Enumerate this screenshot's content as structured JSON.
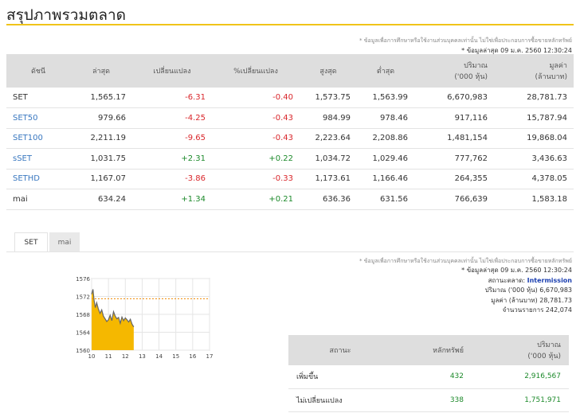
{
  "page_title": "สรุปภาพรวมตลาด",
  "summary": {
    "disclaimer": "* ข้อมูลเพื่อการศึกษาหรือใช้งานส่วนบุคคลเท่านั้น ไม่ใช่เพื่อประกอบการซื้อขายหลักทรัพย์",
    "updated": "* ข้อมูลล่าสุด 09 ม.ค. 2560 12:30:24",
    "headers": {
      "index": "ดัชนี",
      "last": "ล่าสุด",
      "change": "เปลี่ยนแปลง",
      "pct_change": "%เปลี่ยนแปลง",
      "high": "สูงสุด",
      "low": "ต่ำสุด",
      "volume_line1": "ปริมาณ",
      "volume_line2": "('000 หุ้น)",
      "value_line1": "มูลค่า",
      "value_line2": "(ล้านบาท)"
    },
    "rows": [
      {
        "name": "SET",
        "last": "1,565.17",
        "change": "-6.31",
        "pct": "-0.40",
        "high": "1,573.75",
        "low": "1,563.99",
        "volume": "6,670,983",
        "value": "28,781.73"
      },
      {
        "name": "SET50",
        "last": "979.66",
        "change": "-4.25",
        "pct": "-0.43",
        "high": "984.99",
        "low": "978.46",
        "volume": "917,116",
        "value": "15,787.94"
      },
      {
        "name": "SET100",
        "last": "2,211.19",
        "change": "-9.65",
        "pct": "-0.43",
        "high": "2,223.64",
        "low": "2,208.86",
        "volume": "1,481,154",
        "value": "19,868.04"
      },
      {
        "name": "sSET",
        "last": "1,031.75",
        "change": "+2.31",
        "pct": "+0.22",
        "high": "1,034.72",
        "low": "1,029.46",
        "volume": "777,762",
        "value": "3,436.63"
      },
      {
        "name": "SETHD",
        "last": "1,167.07",
        "change": "-3.86",
        "pct": "-0.33",
        "high": "1,173.61",
        "low": "1,166.46",
        "volume": "264,355",
        "value": "4,378.05"
      },
      {
        "name": "mai",
        "last": "634.24",
        "change": "+1.34",
        "pct": "+0.21",
        "high": "636.36",
        "low": "631.56",
        "volume": "766,639",
        "value": "1,583.18"
      }
    ]
  },
  "tabs": [
    {
      "label": "SET",
      "active": true
    },
    {
      "label": "mai",
      "active": false
    }
  ],
  "chart_data": {
    "type": "area",
    "x_ticks": [
      "10",
      "11",
      "12",
      "13",
      "14",
      "15",
      "16",
      "17"
    ],
    "y_ticks": [
      "1576",
      "1572",
      "1568",
      "1564",
      "1560"
    ],
    "ylim": [
      1560,
      1576
    ],
    "xlim": [
      10,
      17
    ],
    "prior_close": 1571.48,
    "series": [
      {
        "color": "#f5b800",
        "line_color": "#666666",
        "x": [
          10.0,
          10.08,
          10.15,
          10.22,
          10.3,
          10.4,
          10.5,
          10.6,
          10.7,
          10.8,
          10.9,
          11.0,
          11.1,
          11.2,
          11.3,
          11.4,
          11.5,
          11.6,
          11.7,
          11.8,
          11.9,
          12.0,
          12.1,
          12.2,
          12.3,
          12.4,
          12.5
        ],
        "y": [
          1572.5,
          1573.6,
          1571.0,
          1569.5,
          1570.6,
          1569.2,
          1568.2,
          1569.0,
          1567.6,
          1567.0,
          1566.4,
          1566.8,
          1567.8,
          1566.6,
          1568.6,
          1567.6,
          1567.0,
          1567.3,
          1566.0,
          1567.4,
          1566.6,
          1567.2,
          1566.8,
          1566.3,
          1566.9,
          1565.8,
          1565.2
        ]
      }
    ]
  },
  "market_info": {
    "disclaimer": "* ข้อมูลเพื่อการศึกษาหรือใช้งานส่วนบุคคลเท่านั้น ไม่ใช่เพื่อประกอบการซื้อขายหลักทรัพย์",
    "updated": "* ข้อมูลล่าสุด 09 ม.ค. 2560 12:30:24",
    "status_label": "สถานะตลาด:",
    "status_value": "Intermission",
    "volume_label": "ปริมาณ ('000 หุ้น)",
    "volume_value": "6,670,983",
    "value_label": "มูลค่า (ล้านบาท)",
    "value_value": "28,781.73",
    "deals_label": "จำนวนรายการ",
    "deals_value": "242,074"
  },
  "status_table": {
    "headers": {
      "status": "สถานะ",
      "securities": "หลักทรัพย์",
      "volume_line1": "ปริมาณ",
      "volume_line2": "('000 หุ้น)"
    },
    "rows": [
      {
        "name": "เพิ่มขึ้น",
        "count": "432",
        "volume": "2,916,567"
      },
      {
        "name": "ไม่เปลี่ยนแปลง",
        "count": "338",
        "volume": "1,751,971"
      }
    ]
  },
  "colors": {
    "accent": "#f0c419",
    "negative": "#d9262b",
    "positive": "#1d8a2b",
    "link": "#3a78c0",
    "header_bg": "#dedede",
    "chart_fill": "#f5b800"
  }
}
